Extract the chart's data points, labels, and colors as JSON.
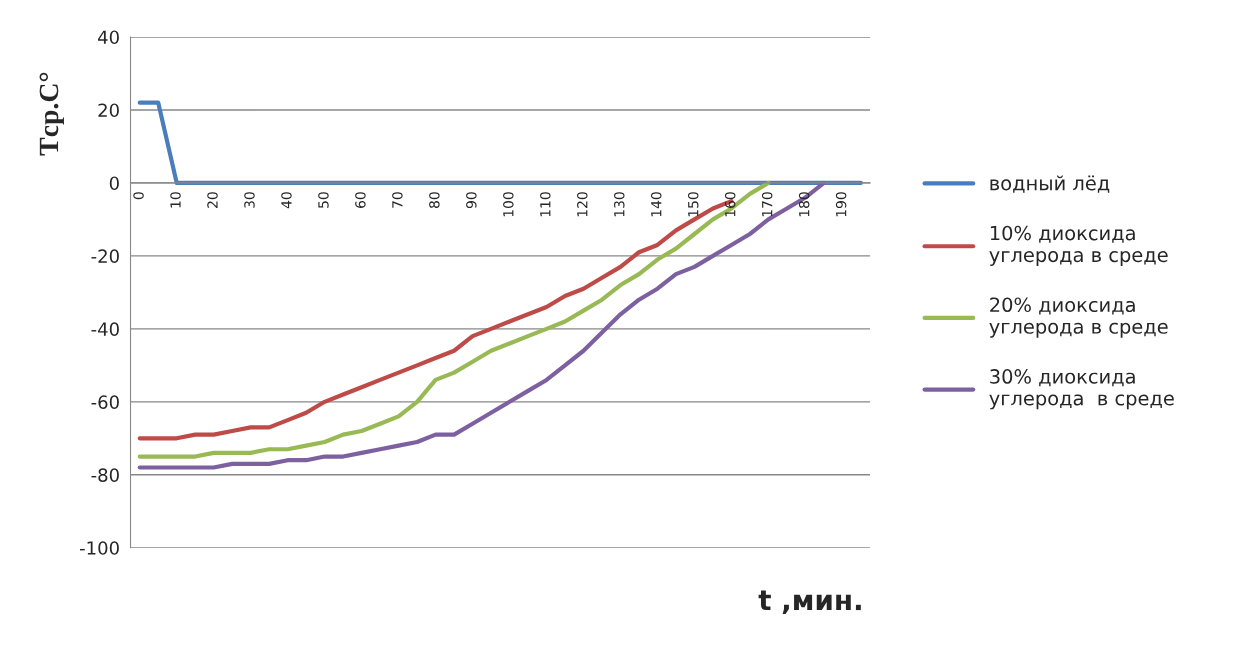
{
  "chart_data": {
    "type": "line",
    "xlabel": "t ,мин.",
    "ylabel": "Tср.С°",
    "xlim": [
      -2.5,
      197.5
    ],
    "xticks": [
      0,
      10,
      20,
      30,
      40,
      50,
      60,
      70,
      80,
      90,
      100,
      110,
      120,
      130,
      140,
      150,
      160,
      170,
      180,
      190
    ],
    "ylim": [
      -100,
      40
    ],
    "yticks": [
      -100,
      -80,
      -60,
      -40,
      -20,
      0,
      20,
      40
    ],
    "grid": "y",
    "legend": "right",
    "marker": "none",
    "line_style": "solid",
    "series": [
      {
        "name": "водный лёд",
        "color": "#4a7ebb",
        "x": [
          0,
          5,
          10,
          15,
          20,
          25,
          30,
          35,
          40,
          45,
          50,
          55,
          60,
          65,
          70,
          75,
          80,
          85,
          90,
          95,
          100,
          105,
          110,
          115,
          120,
          125,
          130,
          135,
          140,
          145,
          150,
          155,
          160,
          165,
          170,
          175,
          180,
          185,
          190,
          195
        ],
        "values": [
          22,
          22,
          0,
          0,
          0,
          0,
          0,
          0,
          0,
          0,
          0,
          0,
          0,
          0,
          0,
          0,
          0,
          0,
          0,
          0,
          0,
          0,
          0,
          0,
          0,
          0,
          0,
          0,
          0,
          0,
          0,
          0,
          0,
          0,
          0,
          0,
          0,
          0,
          0,
          0
        ]
      },
      {
        "name": "10% диоксида\nуглерода в среде",
        "color": "#be4b48",
        "x": [
          0,
          5,
          10,
          15,
          20,
          25,
          30,
          35,
          40,
          45,
          50,
          55,
          60,
          65,
          70,
          75,
          80,
          85,
          90,
          95,
          100,
          105,
          110,
          115,
          120,
          125,
          130,
          135,
          140,
          145,
          150,
          155,
          160
        ],
        "values": [
          -70,
          -70,
          -70,
          -69,
          -69,
          -68,
          -67,
          -67,
          -65,
          -63,
          -60,
          -58,
          -56,
          -54,
          -52,
          -50,
          -48,
          -46,
          -42,
          -40,
          -38,
          -36,
          -34,
          -31,
          -29,
          -26,
          -23,
          -19,
          -17,
          -13,
          -10,
          -7,
          -5
        ]
      },
      {
        "name": "20% диоксида\nуглерода в среде",
        "color": "#98b954",
        "x": [
          0,
          5,
          10,
          15,
          20,
          25,
          30,
          35,
          40,
          45,
          50,
          55,
          60,
          65,
          70,
          75,
          80,
          85,
          90,
          95,
          100,
          105,
          110,
          115,
          120,
          125,
          130,
          135,
          140,
          145,
          150,
          155,
          160,
          165,
          170
        ],
        "values": [
          -75,
          -75,
          -75,
          -75,
          -74,
          -74,
          -74,
          -73,
          -73,
          -72,
          -71,
          -69,
          -68,
          -66,
          -64,
          -60,
          -54,
          -52,
          -49,
          -46,
          -44,
          -42,
          -40,
          -38,
          -35,
          -32,
          -28,
          -25,
          -21,
          -18,
          -14,
          -10,
          -7,
          -3,
          0
        ]
      },
      {
        "name": "30% диоксида\nуглерода  в среде",
        "color": "#7d60a0",
        "x": [
          0,
          5,
          10,
          15,
          20,
          25,
          30,
          35,
          40,
          45,
          50,
          55,
          60,
          65,
          70,
          75,
          80,
          85,
          90,
          95,
          100,
          105,
          110,
          115,
          120,
          125,
          130,
          135,
          140,
          145,
          150,
          155,
          160,
          165,
          170,
          175,
          180,
          185
        ],
        "values": [
          -78,
          -78,
          -78,
          -78,
          -78,
          -77,
          -77,
          -77,
          -76,
          -76,
          -75,
          -75,
          -74,
          -73,
          -72,
          -71,
          -69,
          -69,
          -66,
          -63,
          -60,
          -57,
          -54,
          -50,
          -46,
          -41,
          -36,
          -32,
          -29,
          -25,
          -23,
          -20,
          -17,
          -14,
          -10,
          -7,
          -4,
          0
        ]
      }
    ]
  }
}
